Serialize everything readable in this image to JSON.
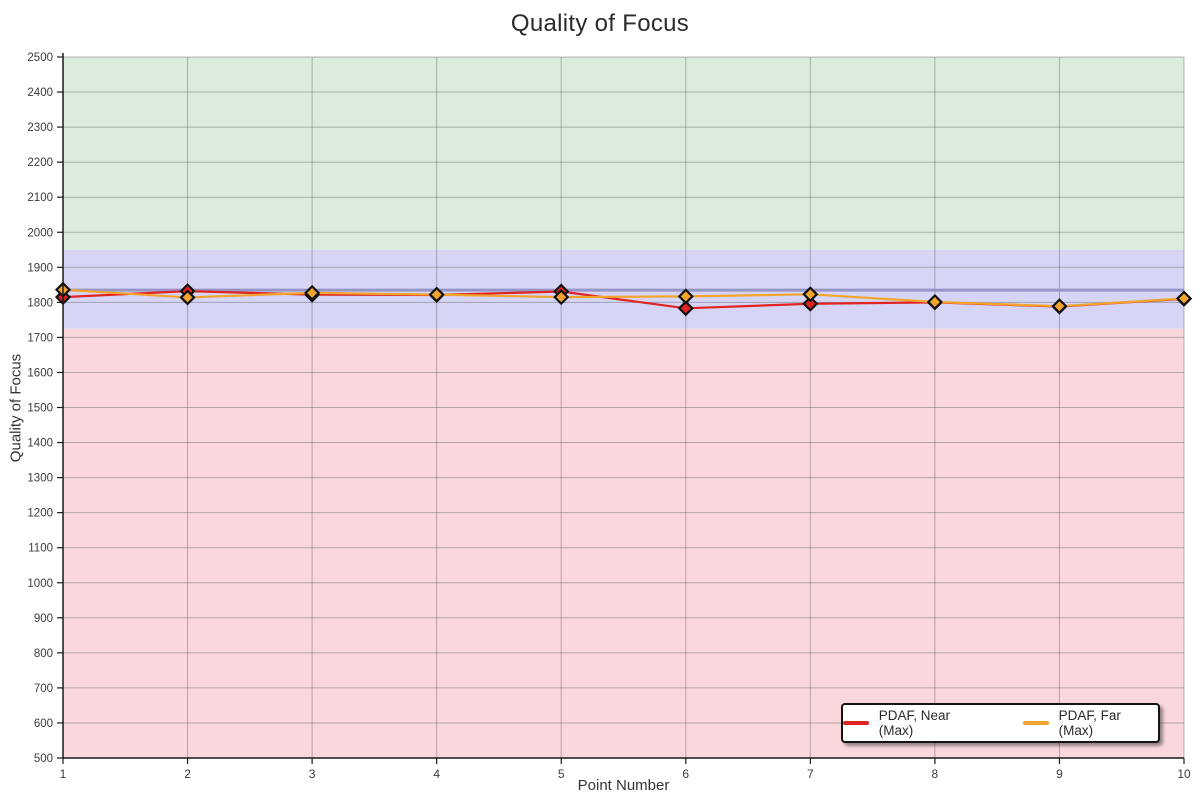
{
  "chart_data": {
    "type": "line",
    "title": "Quality of Focus",
    "xlabel": "Point Number",
    "ylabel": "Quality of Focus",
    "x": [
      1,
      2,
      3,
      4,
      5,
      6,
      7,
      8,
      9,
      10
    ],
    "ylim": [
      500,
      2500
    ],
    "ytick_step": 100,
    "grid": true,
    "legend_position": "bottom-right",
    "series": [
      {
        "name": "PDAF, Near (Max)",
        "color": "#e02421",
        "marker": "diamond",
        "values": [
          1815,
          1832,
          1822,
          1821,
          1831,
          1783,
          1796,
          1800,
          1788,
          1810
        ]
      },
      {
        "name": "PDAF, Far (Max)",
        "color": "#f2a42e",
        "marker": "diamond",
        "values": [
          1836,
          1814,
          1827,
          1822,
          1815,
          1817,
          1823,
          1801,
          1789,
          1811
        ]
      }
    ],
    "bands": [
      {
        "name": "upper-green-band",
        "from": 1950,
        "to": 2500,
        "color": "#dbecdf"
      },
      {
        "name": "middle-blue-band",
        "from": 1725,
        "to": 1950,
        "color": "#d6d5f5"
      },
      {
        "name": "lower-pink-band",
        "from": 500,
        "to": 1725,
        "color": "#f9d7dd"
      }
    ],
    "reference_line": {
      "value": 1835,
      "color": "#9090c2"
    },
    "colors": {
      "axis": "#1a1a1a",
      "gridline": "#5a5a5a",
      "tick_label": "#3c3c3c",
      "marker_outline": "#111111"
    }
  }
}
